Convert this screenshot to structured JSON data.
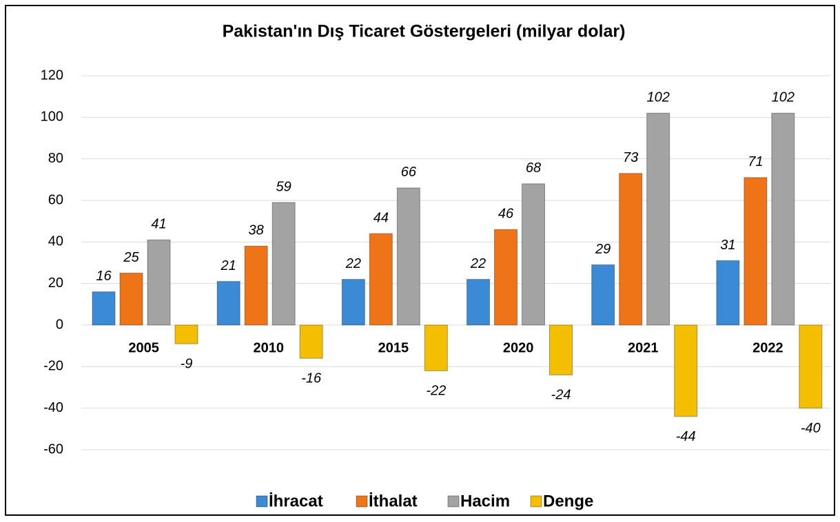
{
  "chart_data": {
    "type": "bar",
    "title": "Pakistan'ın Dış Ticaret Göstergeleri  (milyar dolar)",
    "categories": [
      "2005",
      "2010",
      "2015",
      "2020",
      "2021",
      "2022"
    ],
    "series": [
      {
        "name": "İhracat",
        "color": "#3b8ad6",
        "values": [
          16,
          21,
          22,
          22,
          29,
          31
        ]
      },
      {
        "name": "İthalat",
        "color": "#ef7418",
        "values": [
          25,
          38,
          44,
          46,
          73,
          71
        ]
      },
      {
        "name": "Hacim",
        "color": "#a3a3a3",
        "values": [
          41,
          59,
          66,
          68,
          102,
          102
        ]
      },
      {
        "name": "Denge",
        "color": "#f4bf00",
        "values": [
          -9,
          -16,
          -22,
          -24,
          -44,
          -40
        ]
      }
    ],
    "ylim": [
      -60,
      120
    ],
    "yticks": [
      -60,
      -40,
      -20,
      0,
      20,
      40,
      60,
      80,
      100,
      120
    ],
    "grid": true,
    "legend": "bottom"
  }
}
